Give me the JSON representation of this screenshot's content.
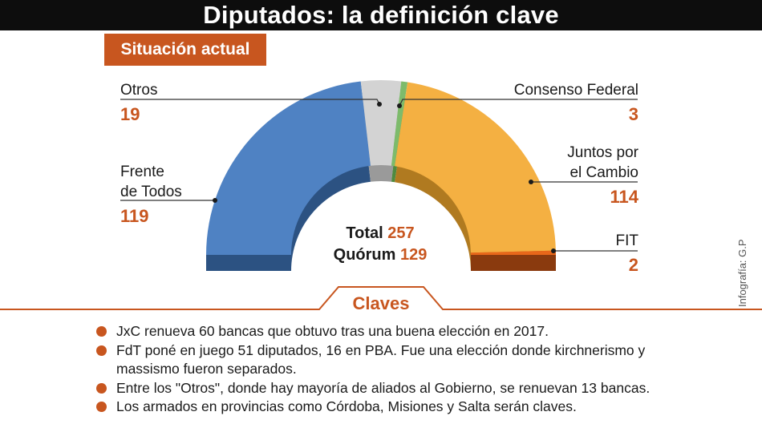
{
  "title": "Diputados: la definición clave",
  "section_label": "Situación actual",
  "chart_data": {
    "type": "pie",
    "shape": "semicircle",
    "slices": [
      {
        "name": "Frente de Todos",
        "value": 119,
        "color": "#4f82c3",
        "shadow": "#2c5282"
      },
      {
        "name": "Otros",
        "value": 19,
        "color": "#d3d3d3",
        "shadow": "#9a9a9a"
      },
      {
        "name": "Consenso Federal",
        "value": 3,
        "color": "#7dbb6b",
        "shadow": "#4e8a3f"
      },
      {
        "name": "Juntos por el Cambio",
        "value": 114,
        "color": "#f4b042",
        "shadow": "#b07a20"
      },
      {
        "name": "FIT",
        "value": 2,
        "color": "#e8671a",
        "shadow": "#8a3a0e"
      }
    ],
    "total_label": "Total",
    "total": 257,
    "quorum_label": "Quórum",
    "quorum": 129
  },
  "labels": {
    "otros": {
      "name": "Otros",
      "value": "19"
    },
    "consenso": {
      "name": "Consenso Federal",
      "value": "3"
    },
    "frente_line1": "Frente",
    "frente_line2": "de Todos",
    "frente_value": "119",
    "juntos_line1": "Juntos por",
    "juntos_line2": "el Cambio",
    "juntos_value": "114",
    "fit": {
      "name": "FIT",
      "value": "2"
    }
  },
  "credit": "Infografía: G.P",
  "claves": {
    "title": "Claves",
    "items": [
      "JxC renueva 60 bancas que obtuvo tras una buena elección en 2017.",
      "FdT poné en juego 51 diputados, 16 en PBA. Fue una elección donde kirchnerismo y massismo fueron separados.",
      "Entre los \"Otros\", donde hay mayoría de aliados al Gobierno, se renuevan 13 bancas.",
      "Los armados en provincias como Córdoba, Misiones y Salta serán claves."
    ]
  }
}
